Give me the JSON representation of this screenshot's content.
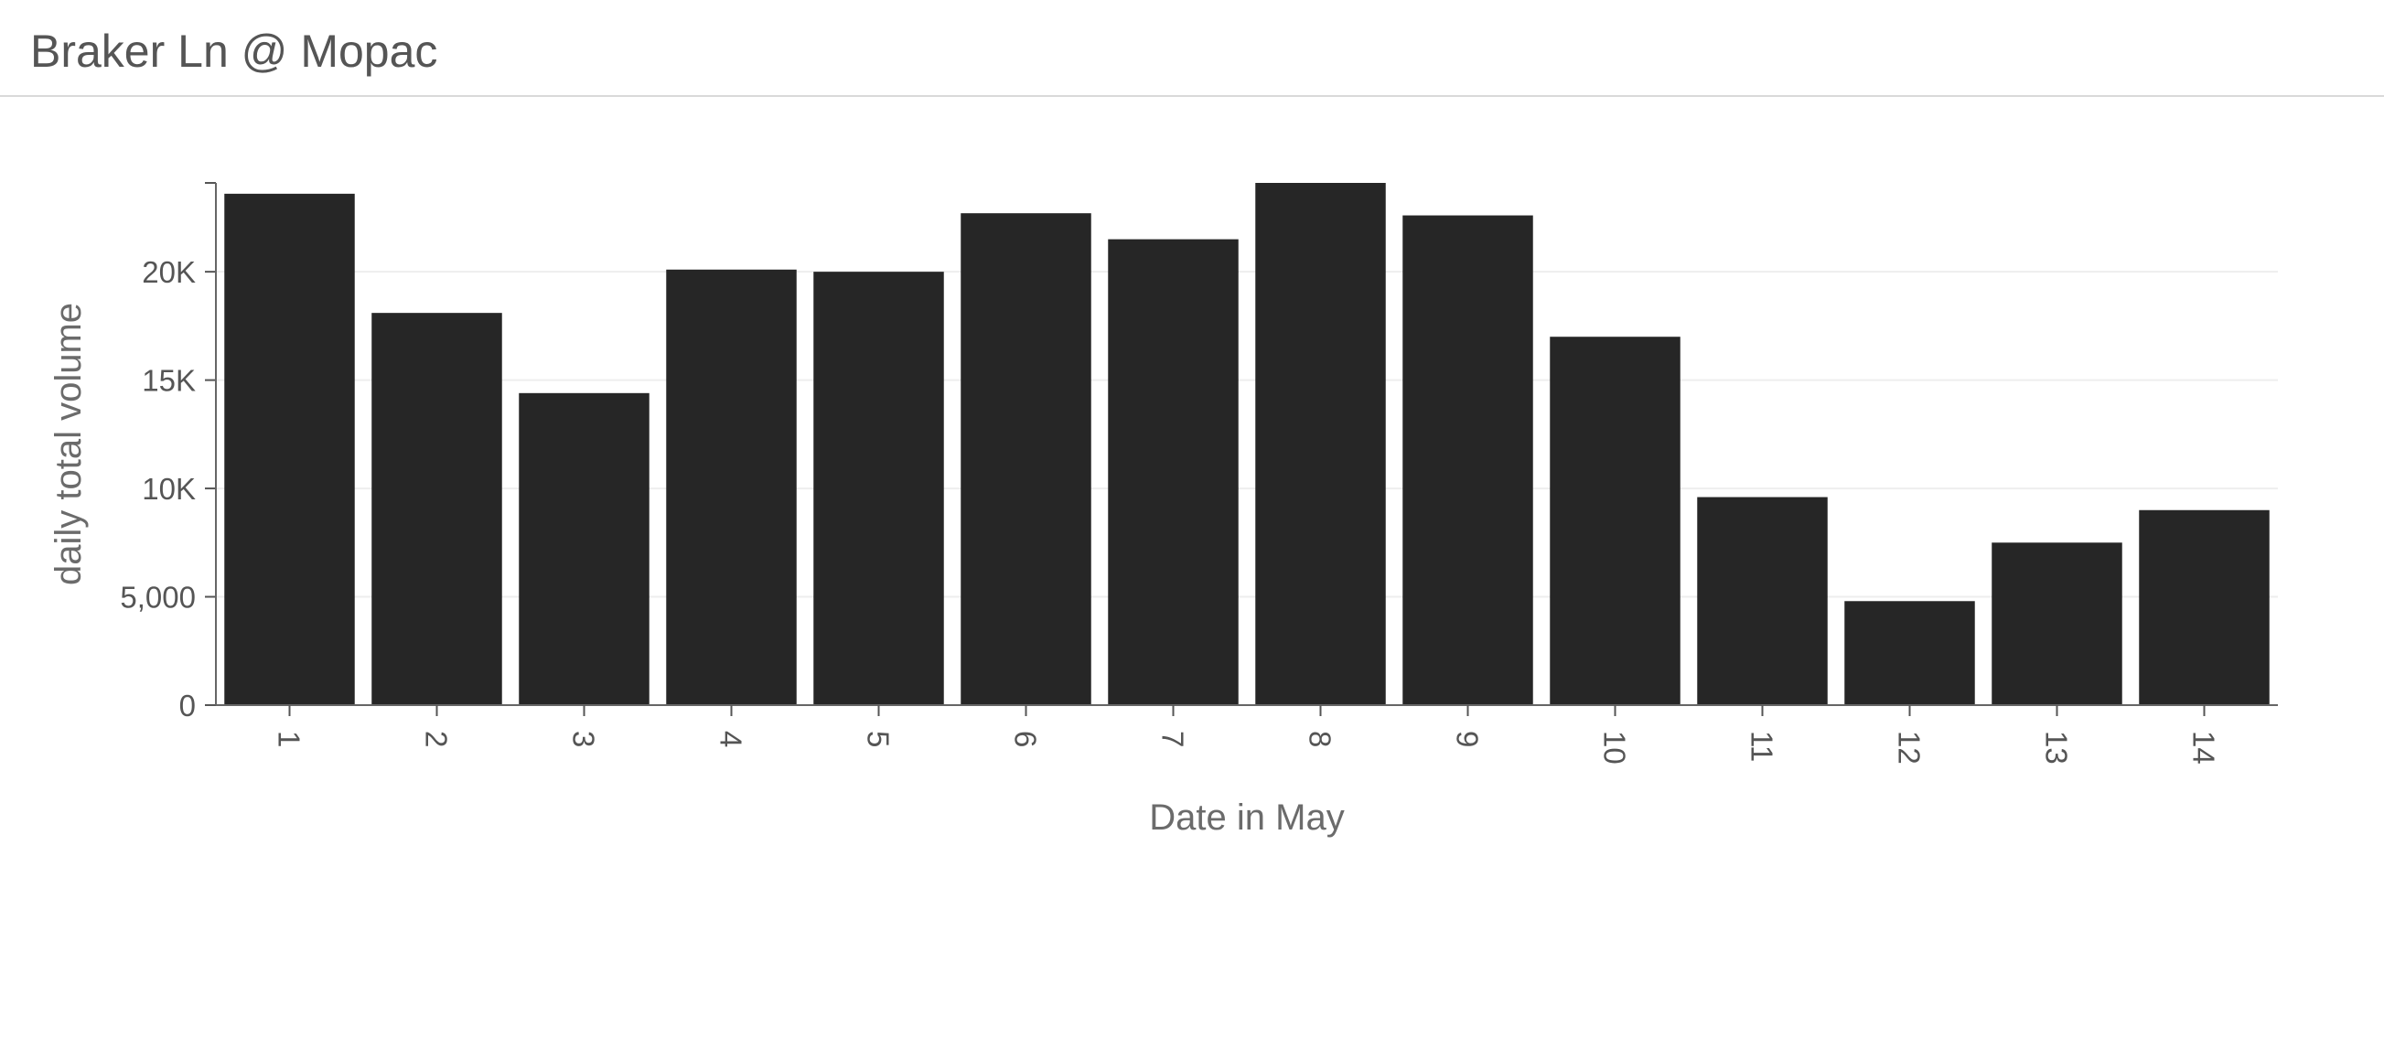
{
  "header": {
    "title": "Braker Ln @ Mopac"
  },
  "chart_data": {
    "type": "bar",
    "title": "Braker Ln @ Mopac",
    "xlabel": "Date in May",
    "ylabel": "daily total volume",
    "categories": [
      "1",
      "2",
      "3",
      "4",
      "5",
      "6",
      "7",
      "8",
      "9",
      "10",
      "11",
      "12",
      "13",
      "14"
    ],
    "values": [
      23600,
      18100,
      14400,
      20100,
      20000,
      22700,
      21500,
      24100,
      22600,
      17000,
      9600,
      4800,
      7500,
      9000
    ],
    "ylim": [
      0,
      24100
    ],
    "yticks": [
      0,
      5000,
      10000,
      15000,
      20000
    ],
    "ytick_labels": [
      "0",
      "5,000",
      "10K",
      "15K",
      "20K"
    ],
    "grid": true,
    "bar_color": "#262626",
    "tick_label_rotation": "vertical"
  }
}
